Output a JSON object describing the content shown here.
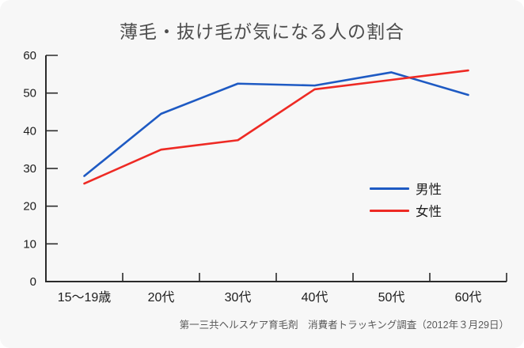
{
  "chart_data": {
    "type": "line",
    "title": "薄毛・抜け毛が気になる人の割合",
    "categories": [
      "15〜19歳",
      "20代",
      "30代",
      "40代",
      "50代",
      "60代"
    ],
    "series": [
      {
        "name": "男性",
        "color": "#1e5ac3",
        "values": [
          28,
          44.5,
          52.5,
          52,
          55.5,
          49.5
        ]
      },
      {
        "name": "女性",
        "color": "#ee2a24",
        "values": [
          26,
          35,
          37.5,
          51,
          53.5,
          56
        ]
      }
    ],
    "xlabel": "",
    "ylabel": "",
    "ylim": [
      0,
      60
    ],
    "y_ticks": [
      0,
      10,
      20,
      30,
      40,
      50,
      60
    ],
    "grid": false,
    "legend_position": "right-center",
    "source": "第一三共ヘルスケア育毛剤　消費者トラッキング調査（2012年３月29日）"
  },
  "style": {
    "card_background": "#f7f7f7",
    "axis_color": "#2b2b2b",
    "title_color": "#4d4d4d"
  }
}
